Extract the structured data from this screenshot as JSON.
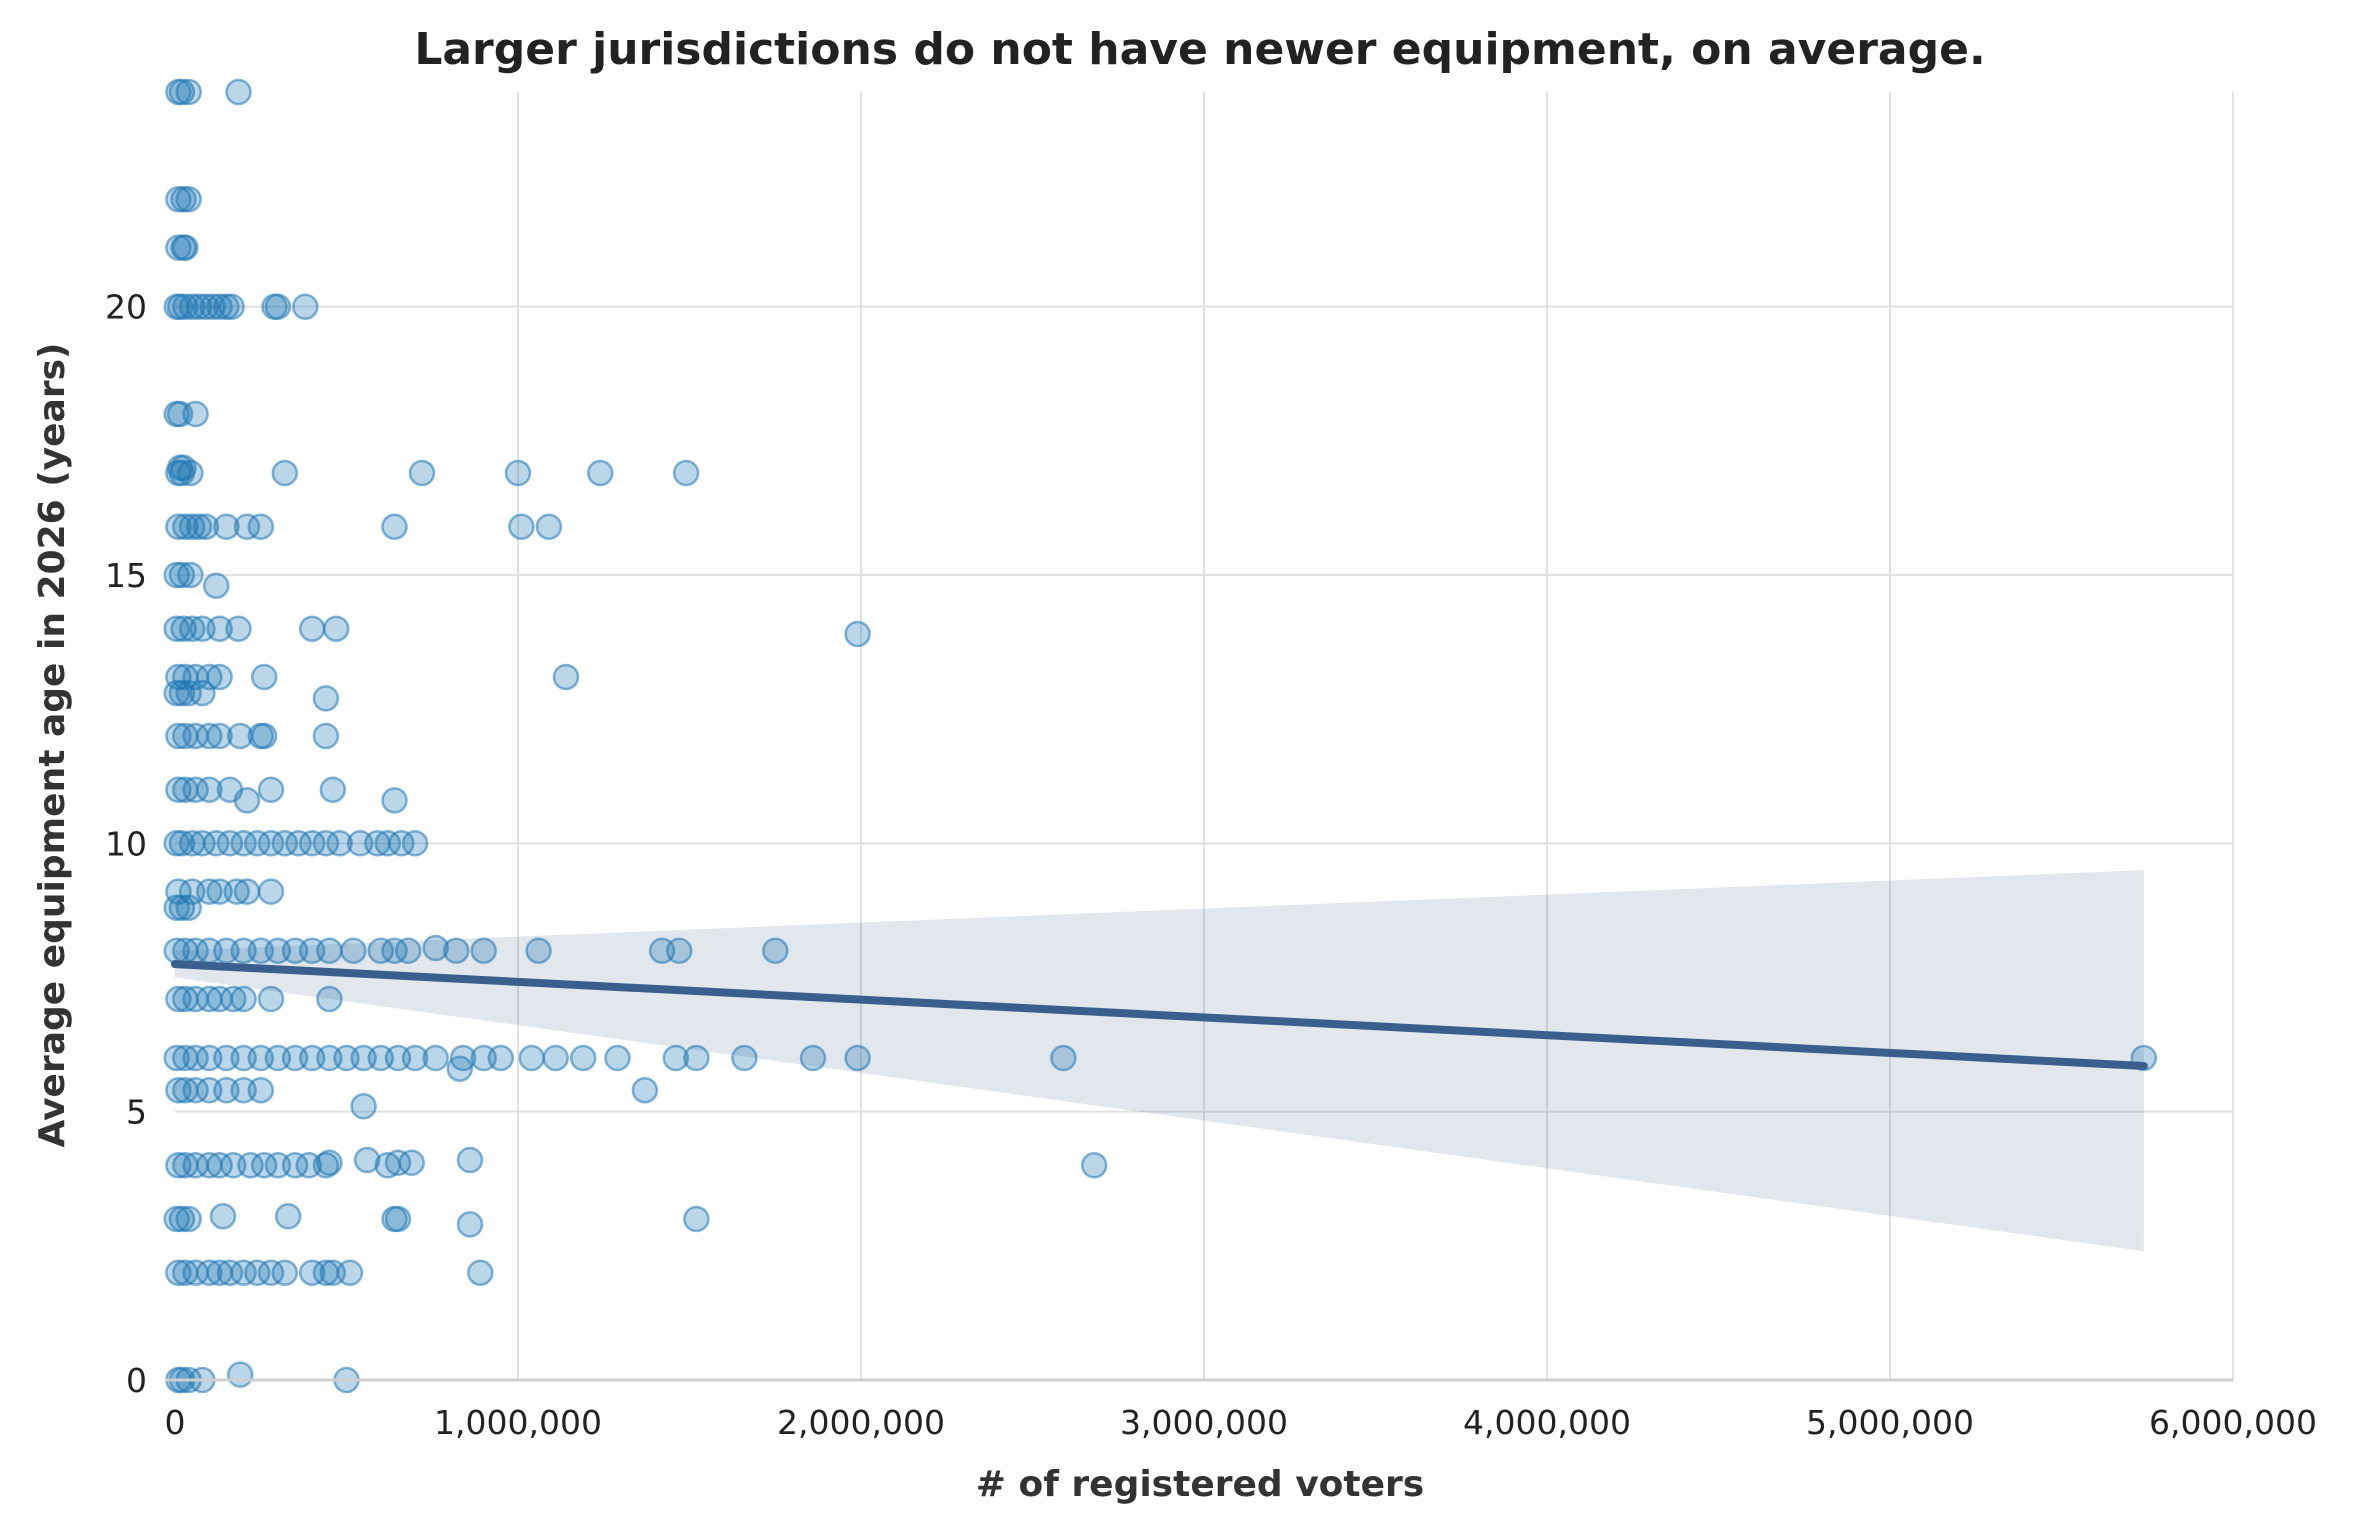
{
  "chart_data": {
    "type": "scatter",
    "title": "Larger jurisdictions do not have newer equipment, on average.",
    "xlabel": "# of registered voters",
    "ylabel": "Average equipment age in 2026 (years)",
    "xlim": [
      0,
      6000000
    ],
    "ylim": [
      0,
      24
    ],
    "x_ticks": [
      0,
      1000000,
      2000000,
      3000000,
      4000000,
      5000000,
      6000000
    ],
    "x_tick_labels": [
      "0",
      "1,000,000",
      "2,000,000",
      "3,000,000",
      "4,000,000",
      "5,000,000",
      "6,000,000"
    ],
    "y_ticks": [
      0,
      5,
      10,
      15,
      20
    ],
    "y_tick_labels": [
      "0",
      "5",
      "10",
      "15",
      "20"
    ],
    "grid": true,
    "colors": {
      "points": "#1f77b4",
      "regression_line": "#3a5f8c",
      "confidence_band": "#3a5a86"
    },
    "regression": {
      "line": {
        "x": [
          0,
          5740000
        ],
        "y": [
          7.75,
          5.85
        ]
      },
      "confidence_band": {
        "x": [
          0,
          5740000
        ],
        "upper": [
          8.0,
          9.5
        ],
        "lower": [
          7.5,
          2.4
        ]
      }
    },
    "points": {
      "x": [
        10000,
        20000,
        40000,
        185000,
        10000,
        25000,
        40000,
        10000,
        25000,
        30000,
        5000,
        15000,
        30000,
        50000,
        70000,
        90000,
        110000,
        130000,
        150000,
        165000,
        290000,
        300000,
        380000,
        5000,
        15000,
        60000,
        15000,
        25000,
        10000,
        20000,
        45000,
        320000,
        720000,
        1000000,
        1240000,
        1490000,
        10000,
        30000,
        50000,
        70000,
        90000,
        150000,
        210000,
        250000,
        640000,
        1010000,
        1090000,
        5000,
        20000,
        45000,
        120000,
        5000,
        25000,
        50000,
        80000,
        130000,
        185000,
        400000,
        470000,
        1990000,
        10000,
        30000,
        60000,
        100000,
        130000,
        260000,
        1140000,
        5000,
        20000,
        40000,
        80000,
        440000,
        10000,
        30000,
        60000,
        100000,
        130000,
        190000,
        250000,
        260000,
        440000,
        10000,
        30000,
        60000,
        100000,
        160000,
        210000,
        280000,
        460000,
        640000,
        5000,
        20000,
        50000,
        80000,
        120000,
        160000,
        200000,
        240000,
        280000,
        320000,
        360000,
        400000,
        440000,
        480000,
        540000,
        590000,
        620000,
        660000,
        700000,
        10000,
        50000,
        100000,
        130000,
        180000,
        210000,
        280000,
        5000,
        20000,
        40000,
        5000,
        30000,
        60000,
        100000,
        150000,
        200000,
        250000,
        300000,
        350000,
        400000,
        450000,
        520000,
        600000,
        640000,
        680000,
        760000,
        820000,
        900000,
        1060000,
        1420000,
        1470000,
        1750000,
        10000,
        30000,
        60000,
        100000,
        130000,
        170000,
        200000,
        280000,
        450000,
        5000,
        30000,
        60000,
        100000,
        150000,
        200000,
        250000,
        300000,
        350000,
        400000,
        450000,
        500000,
        550000,
        600000,
        650000,
        700000,
        760000,
        840000,
        900000,
        950000,
        1040000,
        1110000,
        1190000,
        1290000,
        1460000,
        1520000,
        1660000,
        1860000,
        1990000,
        2590000,
        5740000,
        830000,
        1370000,
        10000,
        30000,
        60000,
        100000,
        150000,
        200000,
        250000,
        550000,
        10000,
        30000,
        60000,
        100000,
        130000,
        170000,
        220000,
        260000,
        300000,
        350000,
        390000,
        440000,
        450000,
        560000,
        620000,
        650000,
        690000,
        860000,
        2680000,
        5000,
        20000,
        40000,
        140000,
        330000,
        640000,
        650000,
        860000,
        1520000,
        10000,
        30000,
        60000,
        100000,
        130000,
        160000,
        200000,
        240000,
        280000,
        320000,
        400000,
        440000,
        460000,
        510000,
        890000,
        10000,
        20000,
        40000,
        80000,
        190000,
        500000
      ],
      "y": [
        24,
        24,
        24,
        24,
        22,
        22,
        22,
        21.1,
        21.1,
        21.1,
        20,
        20,
        20,
        20,
        20,
        20,
        20,
        20,
        20,
        20,
        20,
        20,
        20,
        18,
        18,
        18,
        17,
        17,
        16.9,
        16.9,
        16.9,
        16.9,
        16.9,
        16.9,
        16.9,
        16.9,
        15.9,
        15.9,
        15.9,
        15.9,
        15.9,
        15.9,
        15.9,
        15.9,
        15.9,
        15.9,
        15.9,
        15,
        15,
        15,
        14.8,
        14,
        14,
        14,
        14,
        14,
        14,
        14,
        14,
        13.9,
        13.1,
        13.1,
        13.1,
        13.1,
        13.1,
        13.1,
        13.1,
        12.8,
        12.8,
        12.8,
        12.8,
        12.7,
        12,
        12,
        12,
        12,
        12,
        12,
        12,
        12,
        12,
        11,
        11,
        11,
        11,
        11,
        10.8,
        11,
        11,
        10.8,
        10,
        10,
        10,
        10,
        10,
        10,
        10,
        10,
        10,
        10,
        10,
        10,
        10,
        10,
        10,
        10,
        10,
        10,
        10,
        9.1,
        9.1,
        9.1,
        9.1,
        9.1,
        9.1,
        9.1,
        8.8,
        8.8,
        8.8,
        8,
        8,
        8,
        8,
        8,
        8,
        8,
        8,
        8,
        8,
        8,
        8,
        8,
        8,
        8,
        8.05,
        8,
        8,
        8,
        8,
        8,
        8,
        7.1,
        7.1,
        7.1,
        7.1,
        7.1,
        7.1,
        7.1,
        7.1,
        7.1,
        6,
        6,
        6,
        6,
        6,
        6,
        6,
        6,
        6,
        6,
        6,
        6,
        6,
        6,
        6,
        6,
        6,
        6,
        6,
        6,
        6,
        6,
        6,
        6,
        6,
        6,
        6,
        6,
        6,
        6,
        6,
        5.8,
        5.4,
        5.4,
        5.4,
        5.4,
        5.4,
        5.4,
        5.4,
        5.4,
        5.1,
        4,
        4,
        4,
        4,
        4,
        4,
        4,
        4,
        4,
        4,
        4,
        4,
        4.05,
        4.1,
        4,
        4.05,
        4.05,
        4.1,
        4,
        3,
        3,
        3,
        3.05,
        3.05,
        3,
        3,
        2.9,
        3,
        2,
        2,
        2,
        2,
        2,
        2,
        2,
        2,
        2,
        2,
        2,
        2,
        2,
        2,
        2,
        0,
        0,
        0,
        0,
        0.1,
        0
      ]
    }
  }
}
